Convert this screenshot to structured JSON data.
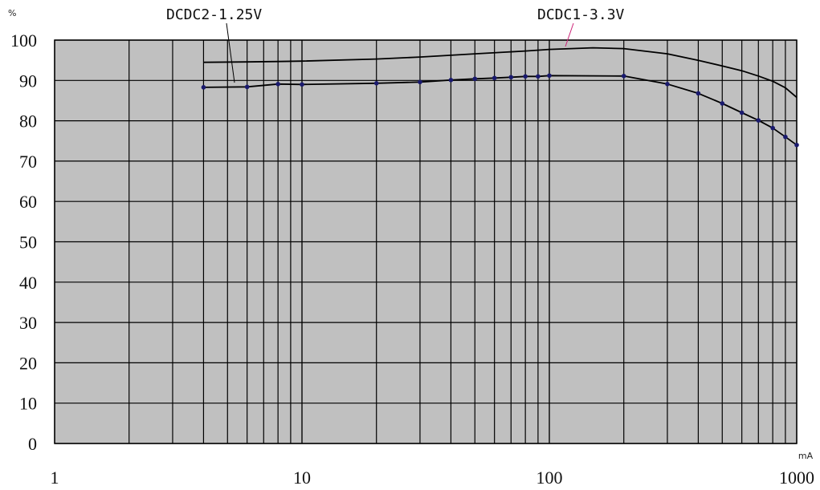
{
  "chart_data": {
    "type": "line",
    "x_scale": "log",
    "xlim": [
      1,
      1000
    ],
    "ylim": [
      0,
      100
    ],
    "y_unit": "%",
    "x_unit": "mA",
    "x_ticks": [
      1,
      10,
      100,
      1000
    ],
    "y_ticks": [
      0,
      10,
      20,
      30,
      40,
      50,
      60,
      70,
      80,
      90,
      100
    ],
    "grid": true,
    "plot_background": "#c0c0c0",
    "series": [
      {
        "name": "DCDC1-3.3V",
        "color": "#000000",
        "marker": false,
        "x": [
          4,
          6,
          8,
          10,
          20,
          30,
          50,
          80,
          100,
          150,
          200,
          300,
          400,
          500,
          600,
          700,
          800,
          900,
          1000
        ],
        "y": [
          94.5,
          94.6,
          94.7,
          94.8,
          95.3,
          95.8,
          96.6,
          97.3,
          97.7,
          98.1,
          97.9,
          96.6,
          95,
          93.6,
          92.4,
          91.1,
          89.8,
          88.2,
          85.8
        ]
      },
      {
        "name": "DCDC2-1.25V",
        "color": "#000000",
        "marker_color": "#1a1a6e",
        "marker": true,
        "x": [
          4,
          6,
          8,
          10,
          20,
          30,
          40,
          50,
          60,
          70,
          80,
          90,
          100,
          200,
          300,
          400,
          500,
          600,
          700,
          800,
          900,
          1000
        ],
        "y": [
          88.3,
          88.4,
          89.1,
          89,
          89.3,
          89.6,
          90.1,
          90.4,
          90.6,
          90.8,
          91,
          91,
          91.2,
          91.1,
          89.1,
          86.8,
          84.3,
          82,
          80.1,
          78.2,
          76,
          74
        ]
      }
    ],
    "labels": [
      "DCDC2-1.25V",
      "DCDC1-3.3V",
      "%",
      "mA"
    ]
  }
}
